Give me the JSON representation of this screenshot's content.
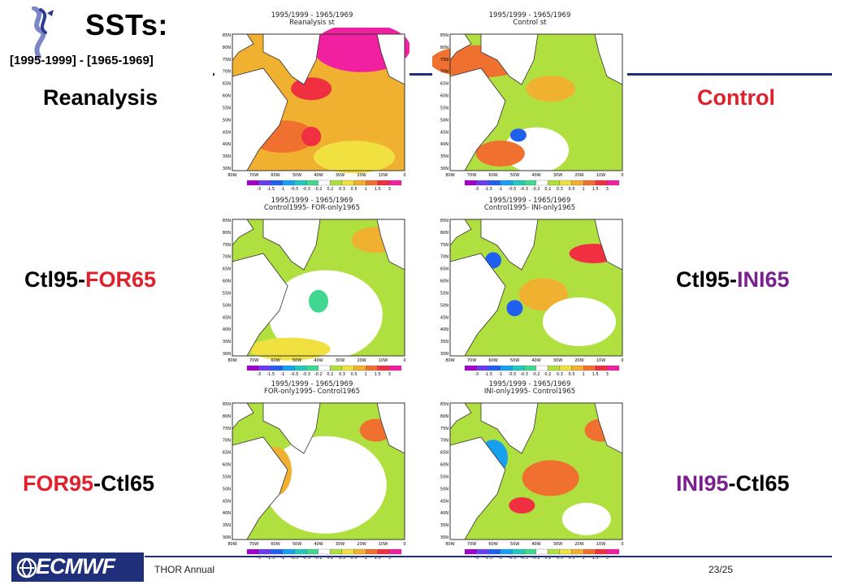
{
  "slide": {
    "title": "SSTs:",
    "subtitle": "[1995-1999] - [1965-1969]",
    "row_labels": {
      "reanalysis": "Reanalysis",
      "control": "Control",
      "ctl95_for65": {
        "a": "Ctl95-",
        "b": "FOR65"
      },
      "ctl95_ini65": {
        "a": "Ctl95-",
        "b": "INI65"
      },
      "for95_ctl65": {
        "a": "FOR95",
        "b": "-Ctl65"
      },
      "ini95_ctl65": {
        "a": "INI95",
        "b": "-Ctl65"
      }
    }
  },
  "panels": [
    {
      "id": "p1",
      "line1": "1995/1999 - 1965/1969",
      "line2": "Reanalysis st"
    },
    {
      "id": "p2",
      "line1": "1995/1999 - 1965/1969",
      "line2": "Control st"
    },
    {
      "id": "p3",
      "line1": "1995/1999 - 1965/1969",
      "line2": "Control1995- FOR-only1965"
    },
    {
      "id": "p4",
      "line1": "1995/1999 - 1965/1969",
      "line2": "Control1995- INI-only1965"
    },
    {
      "id": "p5",
      "line1": "1995/1999 - 1965/1969",
      "line2": "FOR-only1995- Control1965"
    },
    {
      "id": "p6",
      "line1": "1995/1999 - 1965/1969",
      "line2": "INI-only1995- Control1965"
    }
  ],
  "map_axes": {
    "lat_ticks": [
      "85N",
      "80N",
      "75N",
      "70N",
      "65N",
      "60N",
      "55N",
      "50N",
      "45N",
      "40N",
      "35N",
      "30N"
    ],
    "lon_ticks": [
      "80W",
      "70W",
      "60W",
      "50W",
      "40W",
      "30W",
      "20W",
      "10W",
      "0"
    ],
    "colorbar_ticks": [
      "-3",
      "-1.5",
      "-1",
      "-0.5",
      "-0.3",
      "-0.2",
      "0.2",
      "0.3",
      "0.5",
      "1",
      "1.5",
      "3"
    ]
  },
  "colors": {
    "accent": "#1f2f7a",
    "red_label": "#e0202a",
    "purple_label": "#7a1f8e",
    "colorbar": [
      "#a000c8",
      "#6a3cf0",
      "#2060f0",
      "#18a0f0",
      "#20c8c0",
      "#40d890",
      "#ffffff",
      "#b0e040",
      "#f0e040",
      "#f0b030",
      "#f07030",
      "#f03040",
      "#f020a0"
    ]
  },
  "footer": {
    "logo_text": "ECMWF",
    "text": "THOR Annual",
    "page": "23/25"
  }
}
